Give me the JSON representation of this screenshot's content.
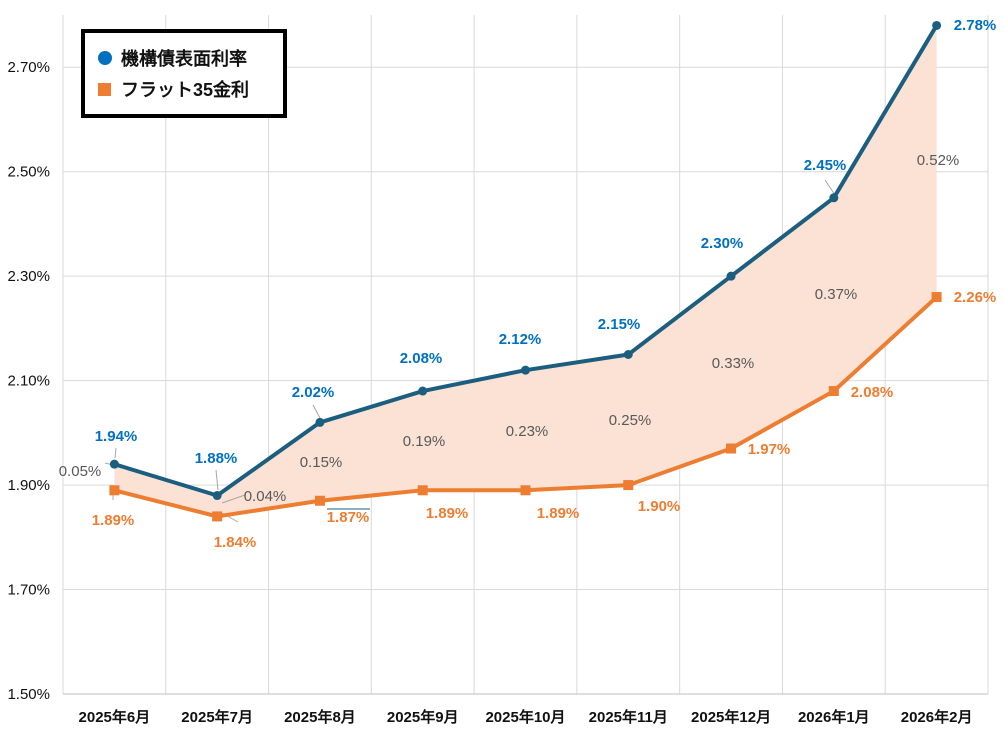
{
  "chart_data": {
    "type": "line",
    "title": "",
    "xlabel": "",
    "ylabel": "",
    "categories": [
      "2025年6月",
      "2025年7月",
      "2025年8月",
      "2025年9月",
      "2025年10月",
      "2025年11月",
      "2025年12月",
      "2026年1月",
      "2026年2月"
    ],
    "ylim": [
      1.5,
      2.8
    ],
    "yticks": [
      1.5,
      1.7,
      1.9,
      2.1,
      2.3,
      2.5,
      2.7
    ],
    "ytick_labels": [
      "1.50%",
      "1.70%",
      "1.90%",
      "2.10%",
      "2.30%",
      "2.50%",
      "2.70%"
    ],
    "grid": true,
    "legend_position": "top-left",
    "series": [
      {
        "name": "機構債表面利率",
        "marker": "circle",
        "line_color": "#1b5e7f",
        "label_color": "#0070c0",
        "values": [
          1.94,
          1.88,
          2.02,
          2.08,
          2.12,
          2.15,
          2.3,
          2.45,
          2.78
        ],
        "labels": [
          "1.94%",
          "1.88%",
          "2.02%",
          "2.08%",
          "2.12%",
          "2.15%",
          "2.30%",
          "2.45%",
          "2.78%"
        ]
      },
      {
        "name": "フラット35金利",
        "marker": "square",
        "line_color": "#ed7d31",
        "label_color": "#ed7d31",
        "values": [
          1.89,
          1.84,
          1.87,
          1.89,
          1.89,
          1.9,
          1.97,
          2.08,
          2.26
        ],
        "labels": [
          "1.89%",
          "1.84%",
          "1.87%",
          "1.89%",
          "1.89%",
          "1.90%",
          "1.97%",
          "2.08%",
          "2.26%"
        ]
      }
    ],
    "spread": {
      "fill_color": "#fbe2d5",
      "values": [
        0.05,
        0.04,
        0.15,
        0.19,
        0.23,
        0.25,
        0.33,
        0.37,
        0.52
      ],
      "labels": [
        "0.05%",
        "0.04%",
        "0.15%",
        "0.19%",
        "0.23%",
        "0.25%",
        "0.33%",
        "0.37%",
        "0.52%"
      ]
    }
  }
}
